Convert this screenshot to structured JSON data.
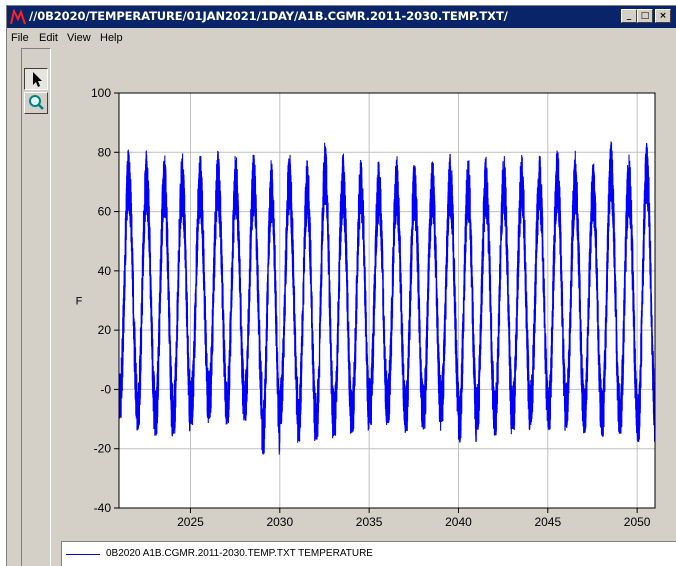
{
  "window": {
    "title": "//0B2020/TEMPERATURE/01JAN2021/1DAY/A1B.CGMR.2011-2030.TEMP.TXT/",
    "minimize_label": "_",
    "maximize_label": "□",
    "close_label": "×"
  },
  "menu": {
    "items": [
      {
        "label": "File"
      },
      {
        "label": "Edit"
      },
      {
        "label": "View"
      },
      {
        "label": "Help"
      }
    ]
  },
  "toolbar": {
    "tools": [
      {
        "icon": "arrow-pointer-icon"
      },
      {
        "icon": "magnifier-icon"
      }
    ]
  },
  "legend": {
    "label": "0B2020 A1B.CGMR.2011-2030.TEMP.TXT TEMPERATURE"
  },
  "chart_data": {
    "type": "line",
    "title": "",
    "xlabel": "",
    "ylabel": "F",
    "xlim": [
      2021.0,
      2051.0
    ],
    "ylim": [
      -40,
      100
    ],
    "x_ticks": [
      2025,
      2030,
      2035,
      2040,
      2045,
      2050
    ],
    "y_ticks": [
      -40,
      -20,
      0,
      20,
      40,
      60,
      80,
      100
    ],
    "y_tick_labels": [
      "-40",
      "-20",
      "-0",
      "20",
      "40",
      "60",
      "80",
      "100"
    ],
    "grid": true,
    "legend_position": "bottom",
    "series": [
      {
        "name": "0B2020 A1B.CGMR.2011-2030.TEMP.TXT TEMPERATURE",
        "color": "#0000ff",
        "annual_peaks": [
          82,
          81,
          80,
          80,
          80,
          81,
          80,
          80,
          78,
          81,
          78,
          84,
          80,
          79,
          78,
          79,
          78,
          79,
          80,
          79,
          79,
          80,
          80,
          80,
          82,
          81,
          78,
          84,
          80,
          84
        ],
        "annual_troughs": [
          -10,
          -14,
          -16,
          -15,
          -12,
          -10,
          -12,
          -11,
          -22,
          -12,
          -18,
          -17,
          -16,
          -15,
          -12,
          -12,
          -15,
          -14,
          -11,
          -18,
          -14,
          -16,
          -14,
          -12,
          -14,
          -13,
          -15,
          -16,
          -15,
          -18
        ]
      }
    ]
  }
}
